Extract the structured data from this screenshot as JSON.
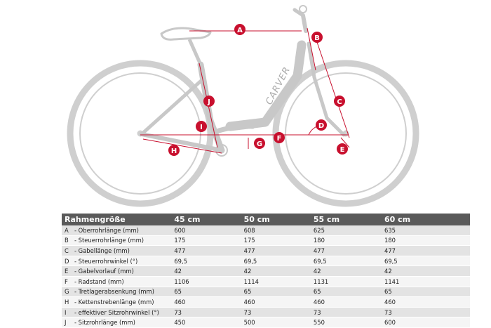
{
  "diagram": {
    "brand": "CARVER",
    "markers": [
      "A",
      "B",
      "C",
      "D",
      "E",
      "F",
      "G",
      "H",
      "I",
      "J"
    ],
    "colors": {
      "frame": "#c8c8c8",
      "wheel": "#cfcfcf",
      "accent": "#c8102e"
    }
  },
  "table": {
    "header": [
      "Rahmengröße",
      "45 cm",
      "50 cm",
      "55 cm",
      "60 cm"
    ],
    "rows": [
      {
        "key": "A",
        "label": "- Oberrohrlänge (mm)",
        "values": [
          "600",
          "608",
          "625",
          "635"
        ]
      },
      {
        "key": "B",
        "label": "- Steuerrohrlänge (mm)",
        "values": [
          "175",
          "175",
          "180",
          "180"
        ]
      },
      {
        "key": "C",
        "label": "- Gabellänge (mm)",
        "values": [
          "477",
          "477",
          "477",
          "477"
        ]
      },
      {
        "key": "D",
        "label": "- Steuerrohrwinkel (°)",
        "values": [
          "69,5",
          "69,5",
          "69,5",
          "69,5"
        ]
      },
      {
        "key": "E",
        "label": "- Gabelvorlauf (mm)",
        "values": [
          "42",
          "42",
          "42",
          "42"
        ]
      },
      {
        "key": "F",
        "label": "- Radstand (mm)",
        "values": [
          "1106",
          "1114",
          "1131",
          "1141"
        ]
      },
      {
        "key": "G",
        "label": "- Tretlagerabsenkung (mm)",
        "values": [
          "65",
          "65",
          "65",
          "65"
        ]
      },
      {
        "key": "H",
        "label": "- Kettenstrebenlänge (mm)",
        "values": [
          "460",
          "460",
          "460",
          "460"
        ]
      },
      {
        "key": "I",
        "label": "- effektiver Sitzrohrwinkel (°)",
        "values": [
          "73",
          "73",
          "73",
          "73"
        ]
      },
      {
        "key": "J",
        "label": "- Sitzrohrlänge (mm)",
        "values": [
          "450",
          "500",
          "550",
          "600"
        ]
      }
    ]
  }
}
